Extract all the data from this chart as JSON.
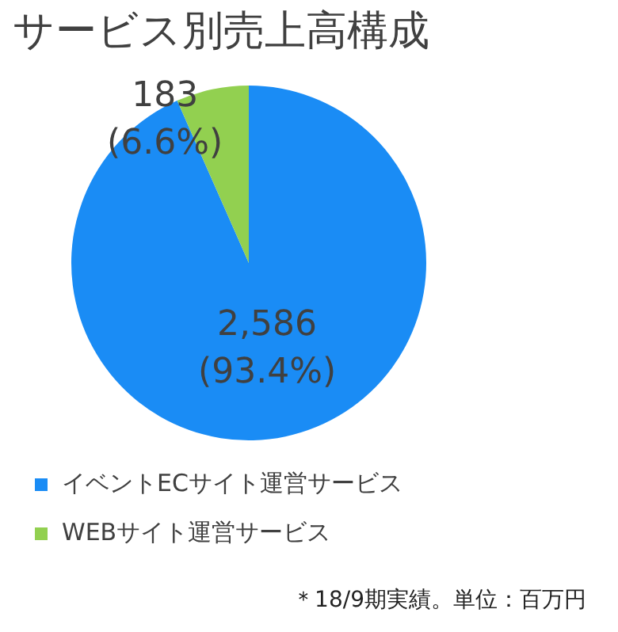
{
  "chart_data": {
    "type": "pie",
    "title": "サービス別売上高構成",
    "categories": [
      "イベントECサイト運営サービス",
      "WEBサイト運営サービス"
    ],
    "values": [
      2586,
      183
    ],
    "colors": [
      "#1a8cf5",
      "#92d050"
    ],
    "value_labels": [
      "2,586\n(93.4%)",
      "183\n(6.6%)"
    ],
    "legend": "bottom",
    "annotations": [
      "＊18/9期実績。単位：百万円"
    ]
  }
}
